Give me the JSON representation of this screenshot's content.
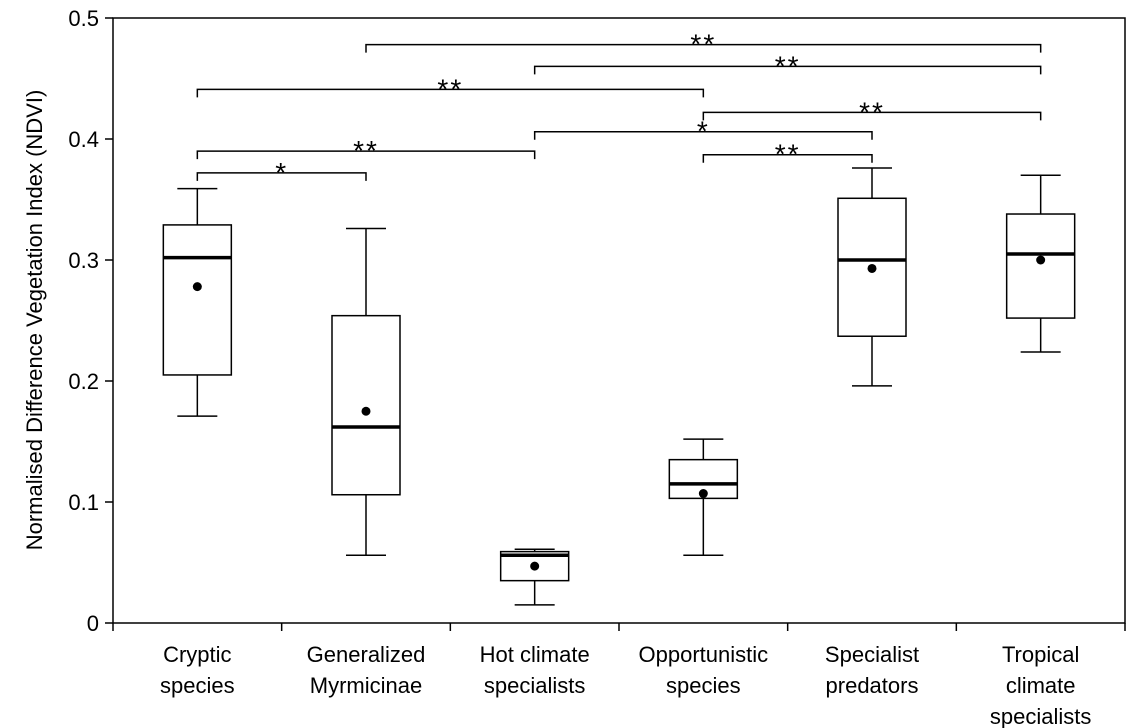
{
  "chart_data": {
    "type": "box",
    "ylabel": "Normalised Difference Vegetation Index (NDVI)",
    "xlabel": "",
    "ylim": [
      0,
      0.5
    ],
    "yticks": [
      0,
      0.1,
      0.2,
      0.3,
      0.4,
      0.5
    ],
    "ytick_labels": [
      "0",
      "0.1",
      "0.2",
      "0.3",
      "0.4",
      "0.5"
    ],
    "grid": false,
    "categories": [
      [
        "Cryptic",
        "species"
      ],
      [
        "Generalized",
        "Myrmicinae"
      ],
      [
        "Hot climate",
        "specialists"
      ],
      [
        "Opportunistic",
        "species"
      ],
      [
        "Specialist",
        "predators"
      ],
      [
        "Tropical",
        "climate",
        "specialists"
      ]
    ],
    "boxes": [
      {
        "whisker_low": 0.171,
        "q1": 0.205,
        "median": 0.302,
        "q3": 0.329,
        "whisker_high": 0.359,
        "mean": 0.278
      },
      {
        "whisker_low": 0.056,
        "q1": 0.106,
        "median": 0.162,
        "q3": 0.254,
        "whisker_high": 0.326,
        "mean": 0.175
      },
      {
        "whisker_low": 0.015,
        "q1": 0.035,
        "median": 0.056,
        "q3": 0.059,
        "whisker_high": 0.061,
        "mean": 0.047
      },
      {
        "whisker_low": 0.056,
        "q1": 0.103,
        "median": 0.115,
        "q3": 0.135,
        "whisker_high": 0.152,
        "mean": 0.107
      },
      {
        "whisker_low": 0.196,
        "q1": 0.237,
        "median": 0.3,
        "q3": 0.351,
        "whisker_high": 0.376,
        "mean": 0.293
      },
      {
        "whisker_low": 0.224,
        "q1": 0.252,
        "median": 0.305,
        "q3": 0.338,
        "whisker_high": 0.37,
        "mean": 0.3
      }
    ],
    "significance": [
      {
        "from": 1,
        "to": 5,
        "y": 0.478,
        "label": "**"
      },
      {
        "from": 2,
        "to": 5,
        "y": 0.46,
        "label": "**"
      },
      {
        "from": 0,
        "to": 3,
        "y": 0.441,
        "label": "**"
      },
      {
        "from": 3,
        "to": 5,
        "y": 0.422,
        "label": "**"
      },
      {
        "from": 2,
        "to": 4,
        "y": 0.406,
        "label": "*"
      },
      {
        "from": 0,
        "to": 2,
        "y": 0.39,
        "label": "**"
      },
      {
        "from": 3,
        "to": 4,
        "y": 0.387,
        "label": "**"
      },
      {
        "from": 0,
        "to": 1,
        "y": 0.372,
        "label": "*"
      }
    ]
  }
}
